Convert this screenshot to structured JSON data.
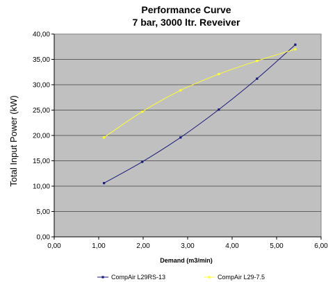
{
  "chart_data": {
    "type": "scatter",
    "title": "Performance Curve",
    "subtitle": "7 bar, 3000 ltr. Reveiver",
    "xlabel": "Demand (m3/min)",
    "ylabel": "Total Input Power  (kW)",
    "xlim": [
      0,
      6
    ],
    "ylim": [
      0,
      40
    ],
    "x_ticks": [
      "0,00",
      "1,00",
      "2,00",
      "3,00",
      "4,00",
      "5,00",
      "6,00"
    ],
    "y_ticks": [
      "0,00",
      "5,00",
      "10,00",
      "15,00",
      "20,00",
      "25,00",
      "30,00",
      "35,00",
      "40,00"
    ],
    "grid": "horizontal",
    "legend_position": "bottom",
    "series": [
      {
        "name": "CompAir L29RS-13",
        "color": "#1a1a7a",
        "points": [
          [
            1.12,
            10.6
          ],
          [
            1.98,
            14.8
          ],
          [
            2.84,
            19.6
          ],
          [
            3.7,
            25.1
          ],
          [
            4.56,
            31.2
          ],
          [
            5.42,
            37.9
          ]
        ]
      },
      {
        "name": "CompAir L29-7.5",
        "color": "#ffff33",
        "points": [
          [
            1.12,
            19.6
          ],
          [
            1.98,
            24.7
          ],
          [
            2.84,
            28.9
          ],
          [
            3.7,
            32.1
          ],
          [
            4.56,
            34.7
          ],
          [
            5.42,
            37.0
          ]
        ]
      }
    ]
  }
}
